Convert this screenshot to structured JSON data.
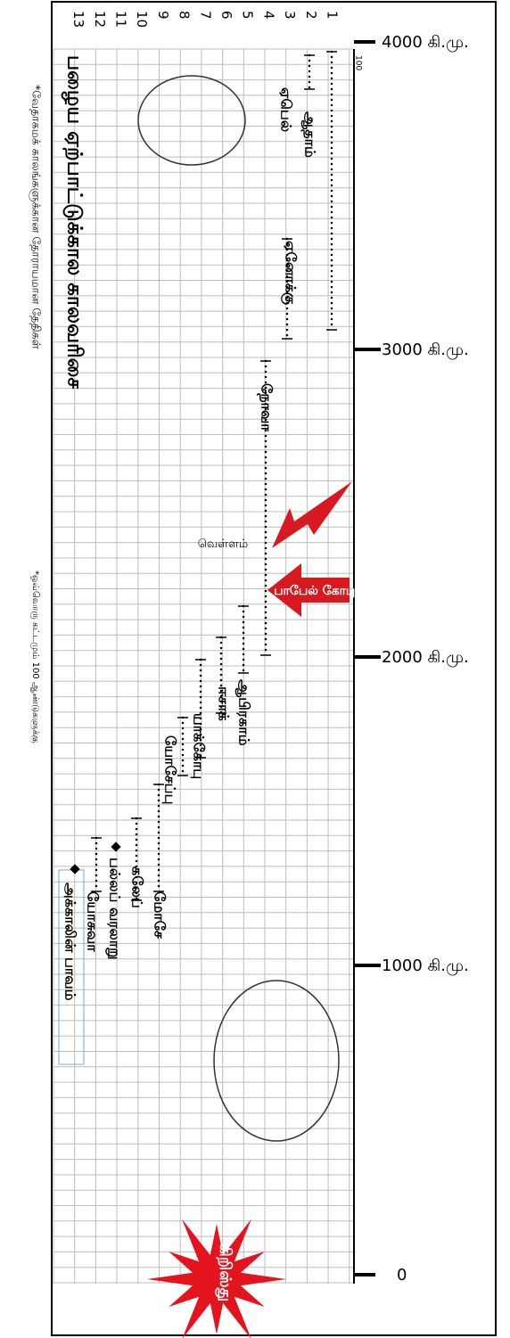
{
  "axis": {
    "ticks": [
      "4000 கி.மு.",
      "3000 கி.மு.",
      "2000 கி.மு.",
      "1000 கி.மு.",
      "0"
    ],
    "scale_note": "100"
  },
  "title": "பழைய ஏற்பாட்டுக்கால காலவரிசை",
  "footnotes": [
    "*வேதாகமக் காலங்களுக்கான தோராயமான தேதிகள்",
    "*ஒவ்வொரு கட்டமும் 100 ஆண்டுகளுக்கு"
  ],
  "rows": [
    "1",
    "2",
    "3",
    "4",
    "5",
    "6",
    "7",
    "8",
    "9",
    "10",
    "11",
    "12",
    "13"
  ],
  "events": [
    {
      "label": "ஆதாம்"
    },
    {
      "label": "ஏபெல்"
    },
    {
      "label": "ஏனோக்கு"
    },
    {
      "label": "நோவா"
    },
    {
      "label": "ஆபிரகாம்"
    },
    {
      "label": "ஈசாக்"
    },
    {
      "label": "யாக்கோபு"
    },
    {
      "label": "யோசேப்பு"
    },
    {
      "label": "மோசே"
    },
    {
      "label": "கலேப்"
    },
    {
      "label": "பல்லப் வரலாறு"
    },
    {
      "label": "யோசுவா"
    },
    {
      "label": "அக்காலின் பாவம்"
    }
  ],
  "flood": "வெள்ளம்",
  "babel": "பாபேல் கோபுரம்",
  "christ": "கிறிஸ்து"
}
